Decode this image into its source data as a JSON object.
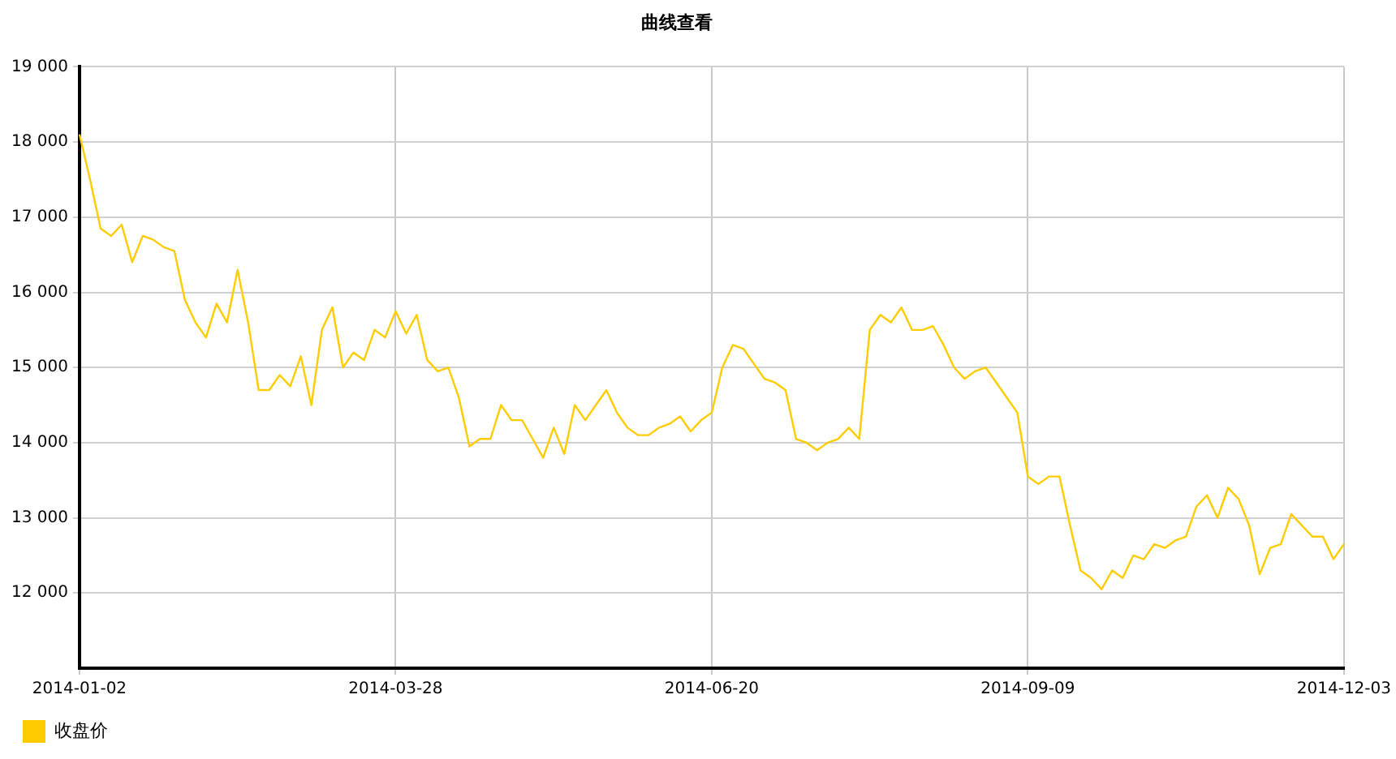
{
  "chart_data": {
    "type": "line",
    "title": "曲线查看",
    "categories": [
      "2014-01-02",
      null,
      null,
      null,
      null,
      null,
      null,
      null,
      null,
      null,
      null,
      null,
      null,
      null,
      null,
      null,
      null,
      null,
      null,
      null,
      null,
      null,
      null,
      null,
      null,
      null,
      null,
      null,
      null,
      null,
      "2014-03-28",
      null,
      null,
      null,
      null,
      null,
      null,
      null,
      null,
      null,
      null,
      null,
      null,
      null,
      null,
      null,
      null,
      null,
      null,
      null,
      null,
      null,
      null,
      null,
      null,
      null,
      null,
      null,
      null,
      null,
      "2014-06-20",
      null,
      null,
      null,
      null,
      null,
      null,
      null,
      null,
      null,
      null,
      null,
      null,
      null,
      null,
      null,
      null,
      null,
      null,
      null,
      null,
      null,
      null,
      null,
      null,
      null,
      null,
      null,
      null,
      null,
      "2014-09-09",
      null,
      null,
      null,
      null,
      null,
      null,
      null,
      null,
      null,
      null,
      null,
      null,
      null,
      null,
      null,
      null,
      null,
      null,
      null,
      null,
      null,
      null,
      null,
      null,
      null,
      null,
      null,
      null,
      null,
      "2014-12-03"
    ],
    "series": [
      {
        "name": "收盘价",
        "color": "#ffcc00",
        "values": [
          18100,
          17500,
          16850,
          16750,
          16900,
          16400,
          16750,
          16700,
          16600,
          16550,
          15900,
          15600,
          15400,
          15850,
          15600,
          16300,
          15600,
          14700,
          14700,
          14900,
          14750,
          15150,
          14500,
          15500,
          15800,
          15000,
          15200,
          15100,
          15500,
          15400,
          15750,
          15450,
          15700,
          15100,
          14950,
          15000,
          14600,
          13950,
          14050,
          14050,
          14500,
          14300,
          14300,
          14050,
          13800,
          14200,
          13850,
          14500,
          14300,
          14500,
          14700,
          14400,
          14200,
          14100,
          14100,
          14200,
          14250,
          14350,
          14150,
          14300,
          14400,
          15000,
          15300,
          15250,
          15050,
          14850,
          14800,
          14700,
          14050,
          14000,
          13900,
          14000,
          14050,
          14200,
          14050,
          15500,
          15700,
          15600,
          15800,
          15500,
          15500,
          15550,
          15300,
          15000,
          14850,
          14950,
          15000,
          14800,
          14600,
          14400,
          13550,
          13450,
          13550,
          13550,
          12900,
          12300,
          12200,
          12050,
          12300,
          12200,
          12500,
          12450,
          12650,
          12600,
          12700,
          12750,
          13150,
          13300,
          13000,
          13400,
          13250,
          12900,
          12250,
          12600,
          12650,
          13050,
          12900,
          12750,
          12750,
          12450,
          12650
        ]
      }
    ],
    "ylim": [
      11000,
      19000
    ],
    "yticks": [
      {
        "value": 12000,
        "label": "12 000"
      },
      {
        "value": 13000,
        "label": "13 000"
      },
      {
        "value": 14000,
        "label": "14 000"
      },
      {
        "value": 15000,
        "label": "15 000"
      },
      {
        "value": 16000,
        "label": "16 000"
      },
      {
        "value": 17000,
        "label": "17 000"
      },
      {
        "value": 18000,
        "label": "18 000"
      },
      {
        "value": 19000,
        "label": "19 000"
      }
    ],
    "grid": true,
    "legend": "bottom left",
    "marker": "none",
    "line_style": "solid"
  }
}
